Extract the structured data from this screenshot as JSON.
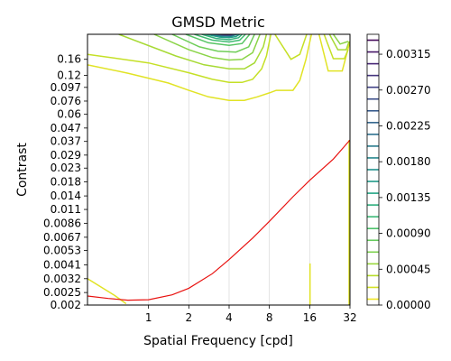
{
  "chart_data": {
    "type": "contour",
    "title": "GMSD Metric",
    "xlabel": "Spatial Frequency [cpd]",
    "ylabel": "Contrast",
    "x_scale": "log2",
    "y_scale": "log",
    "xlim": [
      0.35,
      32
    ],
    "ylim": [
      0.002,
      0.25
    ],
    "x_ticks": [
      {
        "value": 1,
        "label": "1"
      },
      {
        "value": 2,
        "label": "2"
      },
      {
        "value": 4,
        "label": "4"
      },
      {
        "value": 8,
        "label": "8"
      },
      {
        "value": 16,
        "label": "16"
      },
      {
        "value": 32,
        "label": "32"
      }
    ],
    "y_ticks": [
      {
        "value": 0.16,
        "label": "0.16"
      },
      {
        "value": 0.12,
        "label": "0.12"
      },
      {
        "value": 0.097,
        "label": "0.097"
      },
      {
        "value": 0.076,
        "label": "0.076"
      },
      {
        "value": 0.06,
        "label": "0.06"
      },
      {
        "value": 0.047,
        "label": "0.047"
      },
      {
        "value": 0.037,
        "label": "0.037"
      },
      {
        "value": 0.029,
        "label": "0.029"
      },
      {
        "value": 0.023,
        "label": "0.023"
      },
      {
        "value": 0.018,
        "label": "0.018"
      },
      {
        "value": 0.014,
        "label": "0.014"
      },
      {
        "value": 0.011,
        "label": "0.011"
      },
      {
        "value": 0.0086,
        "label": "0.0086"
      },
      {
        "value": 0.0067,
        "label": "0.0067"
      },
      {
        "value": 0.0053,
        "label": "0.0053"
      },
      {
        "value": 0.0041,
        "label": "0.0041"
      },
      {
        "value": 0.0032,
        "label": "0.0032"
      },
      {
        "value": 0.0025,
        "label": "0.0025"
      },
      {
        "value": 0.002,
        "label": "0.002"
      }
    ],
    "grid_x": true,
    "colormap": "viridis",
    "colorbar": {
      "min": 0.0,
      "max": 0.0034,
      "ticks": [
        {
          "value": 0.0,
          "label": "0.00000"
        },
        {
          "value": 0.00045,
          "label": "0.00045"
        },
        {
          "value": 0.0009,
          "label": "0.00090"
        },
        {
          "value": 0.00135,
          "label": "0.00135"
        },
        {
          "value": 0.0018,
          "label": "0.00180"
        },
        {
          "value": 0.00225,
          "label": "0.00225"
        },
        {
          "value": 0.0027,
          "label": "0.00270"
        },
        {
          "value": 0.00315,
          "label": "0.00315"
        }
      ],
      "levels": 23
    },
    "contours": [
      {
        "level": 0.00015,
        "points": [
          [
            0.35,
            0.0032
          ],
          [
            0.55,
            0.0024
          ],
          [
            0.68,
            0.00205
          ]
        ]
      },
      {
        "level": 0.00015,
        "points": [
          [
            16.1,
            0.0042
          ],
          [
            16.1,
            0.002
          ]
        ]
      },
      {
        "level": 0.00015,
        "points": [
          [
            31.5,
            0.038
          ],
          [
            31.5,
            0.002
          ]
        ]
      },
      {
        "level": 0.00015,
        "points": [
          [
            0.35,
            0.145
          ],
          [
            0.7,
            0.125
          ],
          [
            1.4,
            0.105
          ],
          [
            2.0,
            0.092
          ],
          [
            2.8,
            0.082
          ],
          [
            4,
            0.077
          ],
          [
            5.2,
            0.077
          ],
          [
            6.5,
            0.082
          ],
          [
            8,
            0.088
          ],
          [
            9,
            0.092
          ],
          [
            12,
            0.092
          ],
          [
            13.5,
            0.11
          ],
          [
            15,
            0.16
          ],
          [
            16.5,
            0.25
          ]
        ]
      },
      {
        "level": 0.00015,
        "points": [
          [
            18.8,
            0.25
          ],
          [
            22,
            0.13
          ],
          [
            28,
            0.13
          ],
          [
            30,
            0.17
          ],
          [
            32,
            0.22
          ]
        ]
      },
      {
        "level": 0.0003,
        "points": [
          [
            0.35,
            0.175
          ],
          [
            1.0,
            0.15
          ],
          [
            2,
            0.126
          ],
          [
            3,
            0.112
          ],
          [
            4,
            0.106
          ],
          [
            5,
            0.106
          ],
          [
            6,
            0.112
          ],
          [
            7,
            0.135
          ],
          [
            7.6,
            0.17
          ],
          [
            8.2,
            0.25
          ]
        ]
      },
      {
        "level": 0.0003,
        "points": [
          [
            8.8,
            0.25
          ],
          [
            11.6,
            0.16
          ],
          [
            13.5,
            0.175
          ],
          [
            15.2,
            0.25
          ]
        ]
      },
      {
        "level": 0.0003,
        "points": [
          [
            20.5,
            0.25
          ],
          [
            24,
            0.162
          ],
          [
            29,
            0.162
          ],
          [
            31,
            0.19
          ]
        ]
      },
      {
        "level": 0.00045,
        "points": [
          [
            0.6,
            0.25
          ],
          [
            1.6,
            0.17
          ],
          [
            2.6,
            0.145
          ],
          [
            4,
            0.135
          ],
          [
            5.2,
            0.135
          ],
          [
            6.2,
            0.15
          ],
          [
            7.2,
            0.2
          ],
          [
            7.6,
            0.25
          ]
        ]
      },
      {
        "level": 0.00045,
        "points": [
          [
            22.5,
            0.25
          ],
          [
            26,
            0.19
          ],
          [
            30,
            0.19
          ],
          [
            31.5,
            0.22
          ]
        ]
      },
      {
        "level": 0.0006,
        "points": [
          [
            1.1,
            0.25
          ],
          [
            2,
            0.19
          ],
          [
            3,
            0.165
          ],
          [
            4,
            0.158
          ],
          [
            5,
            0.16
          ],
          [
            6,
            0.18
          ],
          [
            6.8,
            0.25
          ]
        ]
      },
      {
        "level": 0.0006,
        "points": [
          [
            24,
            0.25
          ],
          [
            27,
            0.21
          ],
          [
            31,
            0.22
          ]
        ]
      },
      {
        "level": 0.00075,
        "points": [
          [
            1.5,
            0.25
          ],
          [
            2.4,
            0.2
          ],
          [
            3.3,
            0.185
          ],
          [
            4.5,
            0.182
          ],
          [
            5.6,
            0.2
          ],
          [
            6.2,
            0.25
          ]
        ]
      },
      {
        "level": 0.0009,
        "points": [
          [
            1.9,
            0.25
          ],
          [
            2.8,
            0.215
          ],
          [
            4,
            0.205
          ],
          [
            5,
            0.212
          ],
          [
            5.7,
            0.25
          ]
        ]
      },
      {
        "level": 0.00105,
        "points": [
          [
            2.2,
            0.25
          ],
          [
            3,
            0.225
          ],
          [
            4,
            0.218
          ],
          [
            4.8,
            0.225
          ],
          [
            5.3,
            0.25
          ]
        ]
      },
      {
        "level": 0.0012,
        "points": [
          [
            2.5,
            0.25
          ],
          [
            3.2,
            0.232
          ],
          [
            4,
            0.227
          ],
          [
            4.7,
            0.235
          ],
          [
            5.0,
            0.25
          ]
        ]
      },
      {
        "level": 0.0015,
        "points": [
          [
            2.7,
            0.25
          ],
          [
            3.4,
            0.238
          ],
          [
            4,
            0.235
          ],
          [
            4.5,
            0.24
          ],
          [
            4.8,
            0.25
          ]
        ]
      },
      {
        "level": 0.0018,
        "points": [
          [
            2.9,
            0.25
          ],
          [
            3.5,
            0.242
          ],
          [
            4.1,
            0.241
          ],
          [
            4.6,
            0.25
          ]
        ]
      },
      {
        "level": 0.0022,
        "points": [
          [
            3.1,
            0.25
          ],
          [
            3.6,
            0.245
          ],
          [
            4.1,
            0.245
          ],
          [
            4.5,
            0.25
          ]
        ]
      },
      {
        "level": 0.0026,
        "points": [
          [
            3.3,
            0.25
          ],
          [
            3.7,
            0.247
          ],
          [
            4.1,
            0.247
          ],
          [
            4.3,
            0.25
          ]
        ]
      },
      {
        "level": 0.003,
        "points": [
          [
            3.5,
            0.25
          ],
          [
            3.8,
            0.249
          ],
          [
            4.1,
            0.249
          ],
          [
            4.2,
            0.25
          ]
        ]
      }
    ],
    "threshold_curve": {
      "color": "#e8110f",
      "points": [
        [
          0.35,
          0.00235
        ],
        [
          0.5,
          0.00225
        ],
        [
          0.7,
          0.00218
        ],
        [
          1.0,
          0.0022
        ],
        [
          1.5,
          0.0024
        ],
        [
          2,
          0.0027
        ],
        [
          3,
          0.0035
        ],
        [
          4,
          0.0045
        ],
        [
          6,
          0.0066
        ],
        [
          8,
          0.0089
        ],
        [
          12,
          0.0138
        ],
        [
          16,
          0.0185
        ],
        [
          24,
          0.027
        ],
        [
          32,
          0.038
        ]
      ]
    }
  }
}
